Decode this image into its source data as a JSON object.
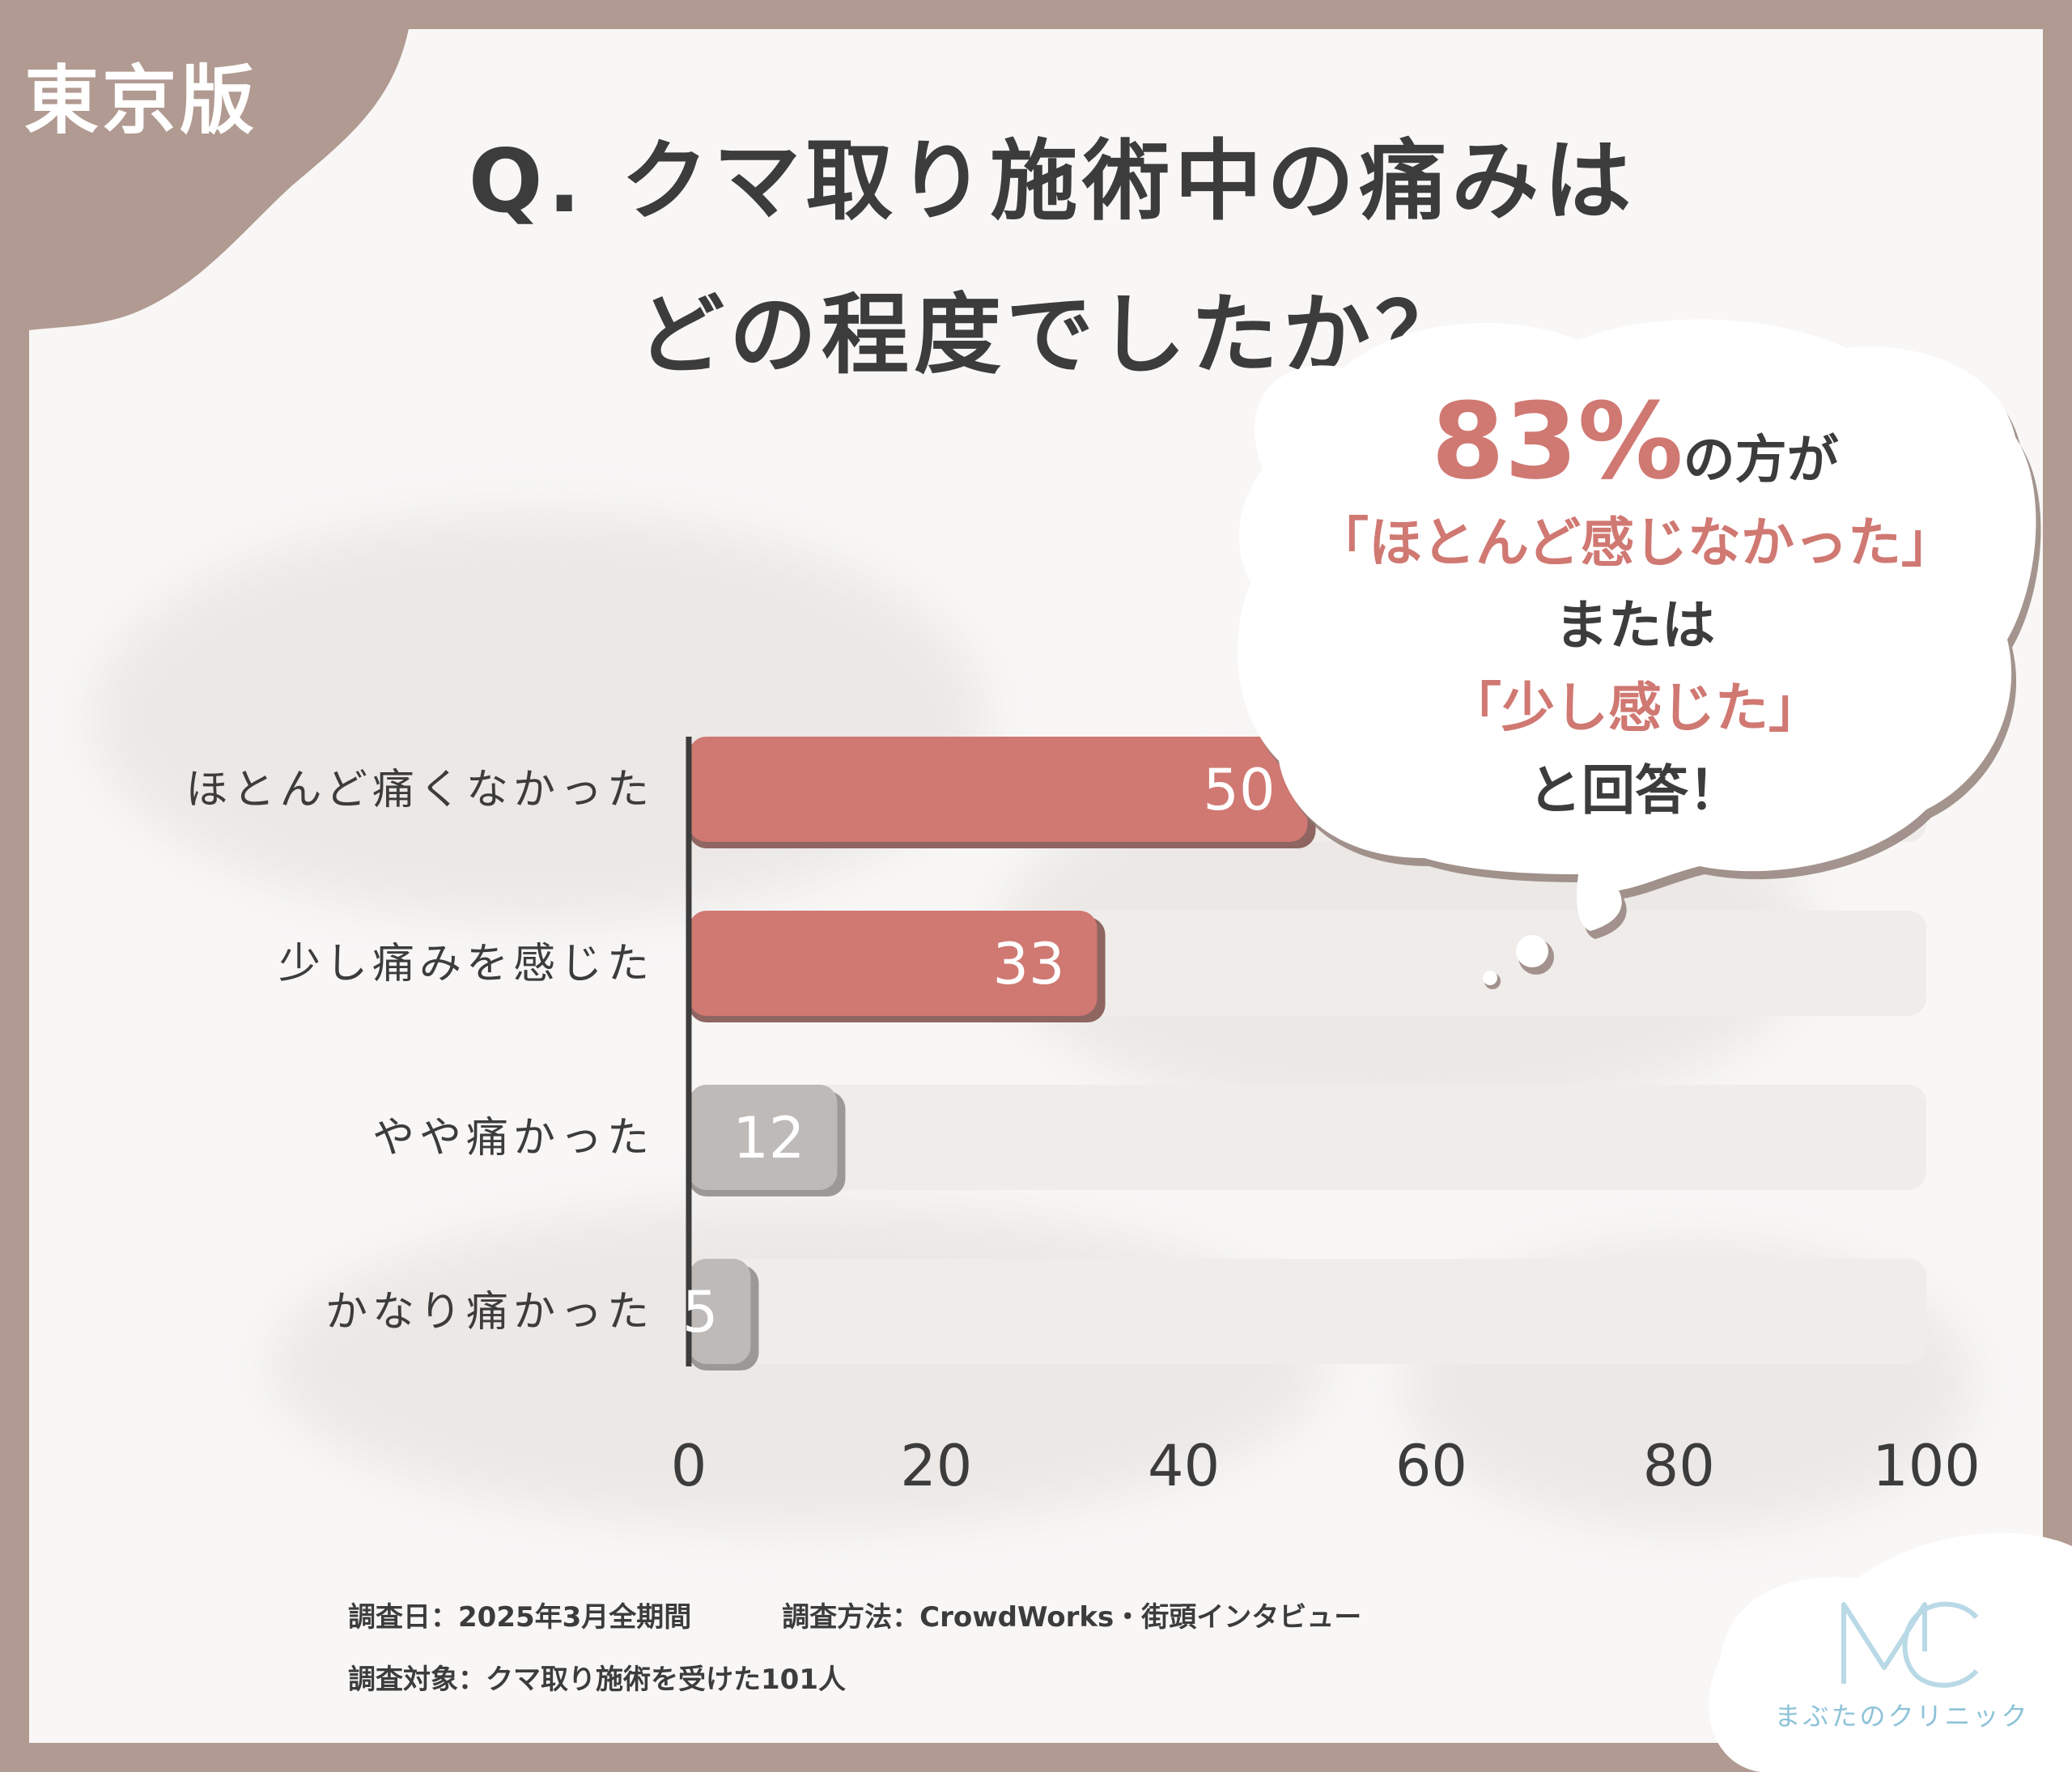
{
  "region_tag": "東京版",
  "title": {
    "line1": "Q. クマ取り施術中の痛みは",
    "line2": "どの程度でしたか？"
  },
  "callout": {
    "percent": "83%",
    "line1_suffix": "の方が",
    "line2": "「ほとんど感じなかった」",
    "line3": "または",
    "line4": "「少し感じた」",
    "line5": "と回答！"
  },
  "footer": {
    "survey_date": "調査日：2025年3月全期間",
    "survey_method": "調査方法：CrowdWorks・街頭インタビュー",
    "survey_target": "調査対象：クマ取り施術を受けた101人"
  },
  "logo": {
    "mark": "MC",
    "name": "まぶたのクリニック"
  },
  "colors": {
    "frame": "#b19a91",
    "accent": "#d07872",
    "accent_shadow": "#8e6561",
    "muted_bar": "#bdbab8",
    "muted_shadow": "#9c9896",
    "track": "#efecea",
    "text": "#3c3c3c",
    "logo": "#8ec3d8"
  },
  "chart_data": {
    "type": "bar",
    "orientation": "horizontal",
    "categories": [
      "ほとんど痛くなかった",
      "少し痛みを感じた",
      "やや痛かった",
      "かなり痛かった"
    ],
    "values": [
      50,
      33,
      12,
      5
    ],
    "data_labels": [
      "50",
      "33",
      "12",
      "5"
    ],
    "highlight": [
      true,
      true,
      false,
      false
    ],
    "xlim": [
      0,
      100
    ],
    "xticks": [
      0,
      20,
      40,
      60,
      80,
      100
    ],
    "xtick_labels": [
      "0",
      "20",
      "40",
      "60",
      "80",
      "100"
    ],
    "grid": false,
    "title": "",
    "xlabel": "",
    "ylabel": ""
  }
}
